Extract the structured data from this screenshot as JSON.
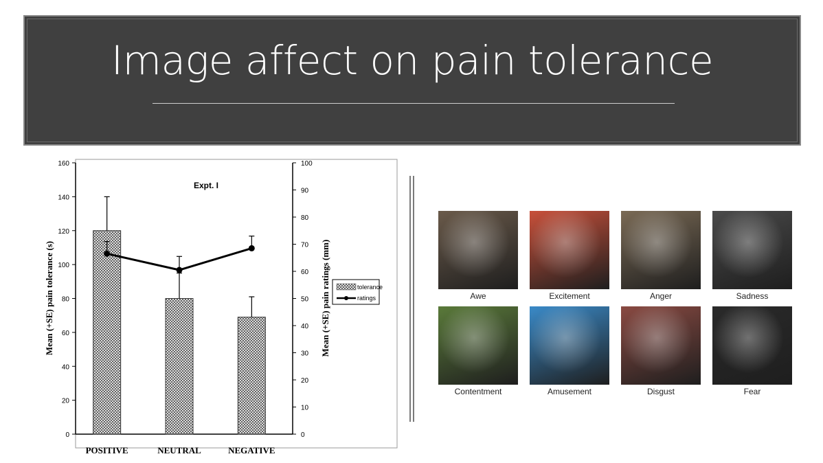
{
  "slide": {
    "title": "Image affect on pain tolerance"
  },
  "chart_data": {
    "type": "bar",
    "annotation": "Expt. I",
    "categories": [
      "POSITIVE",
      "NEUTRAL",
      "NEGATIVE"
    ],
    "series": [
      {
        "name": "tolerance",
        "type": "bar",
        "axis": "left",
        "values": [
          120,
          80,
          69
        ],
        "error": [
          20,
          15,
          12
        ]
      },
      {
        "name": "ratings",
        "type": "line",
        "axis": "right",
        "values": [
          66.5,
          60.5,
          68.5
        ],
        "error": [
          4.5,
          5,
          4.5
        ]
      }
    ],
    "ylabel": "Mean (+SE) pain tolerance (s)",
    "y2label": "Mean (+SE) pain ratings (mm)",
    "ylim": [
      0,
      160
    ],
    "y2lim": [
      0,
      100
    ],
    "yticks": [
      0,
      20,
      40,
      60,
      80,
      100,
      120,
      140,
      160
    ],
    "y2ticks": [
      0,
      10,
      20,
      30,
      40,
      50,
      60,
      70,
      80,
      90,
      100
    ],
    "legend_position": "right",
    "grid": false
  },
  "emotions": [
    {
      "label": "Awe",
      "icon": "child-looking-up-photo",
      "color": "#6a5a4a"
    },
    {
      "label": "Excitement",
      "icon": "party-children-photo",
      "color": "#c8503a"
    },
    {
      "label": "Anger",
      "icon": "angry-crowd-photo",
      "color": "#7a6a55"
    },
    {
      "label": "Sadness",
      "icon": "sad-figure-photo",
      "color": "#4a4a4a"
    },
    {
      "label": "Contentment",
      "icon": "lotus-flower-photo",
      "color": "#5a7a3a"
    },
    {
      "label": "Amusement",
      "icon": "ferris-wheel-photo",
      "color": "#3a8ac8"
    },
    {
      "label": "Disgust",
      "icon": "wounded-finger-photo",
      "color": "#8a4a42"
    },
    {
      "label": "Fear",
      "icon": "frightened-face-photo",
      "color": "#2a2a2a"
    }
  ]
}
